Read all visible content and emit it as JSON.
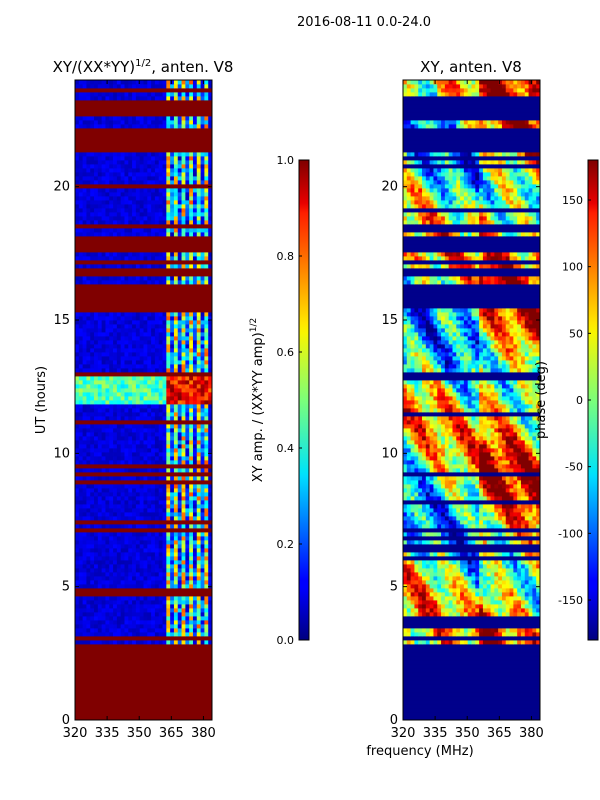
{
  "figure": {
    "suptitle": "2016-08-11 0.0-24.0",
    "shared_xlabel": "frequency (MHz)"
  },
  "chart_data": [
    {
      "type": "heatmap",
      "title": "XY/(XX*YY)",
      "title_superscript": "1/2",
      "title_suffix": ", anten. V8",
      "xlabel": "",
      "ylabel": "UT (hours)",
      "xlim": [
        320,
        384
      ],
      "ylim": [
        0,
        24
      ],
      "xticks": [
        "320",
        "335",
        "350",
        "365",
        "380"
      ],
      "yticks": [
        "0",
        "5",
        "10",
        "15",
        "20"
      ],
      "colorbar": {
        "label": "XY amp. / (XX*YY amp)",
        "label_superscript": "1/2",
        "range": [
          0.0,
          1.0
        ],
        "ticks": [
          "0.0",
          "0.2",
          "0.4",
          "0.6",
          "0.8",
          "1.0"
        ],
        "colormap": "jet"
      },
      "masked_value_color": "#800000",
      "masked_time_ranges": [
        [
          0.0,
          2.8
        ],
        [
          15.4,
          16.3
        ],
        [
          16.6,
          16.9
        ],
        [
          17.6,
          18.2
        ],
        [
          21.3,
          22.2
        ],
        [
          22.6,
          23.3
        ]
      ],
      "hot_frequency_band": [
        362,
        382
      ],
      "high_coherence_time_range": [
        11.9,
        13.0
      ]
    },
    {
      "type": "heatmap",
      "title": "XY, anten. V8",
      "xlabel": "frequency (MHz)",
      "ylabel": "",
      "xlim": [
        320,
        384
      ],
      "ylim": [
        0,
        24
      ],
      "xticks": [
        "320",
        "335",
        "350",
        "365",
        "380"
      ],
      "yticks": [
        "0",
        "5",
        "10",
        "15",
        "20"
      ],
      "colorbar": {
        "label": "phase (deg)",
        "range": [
          -180,
          180
        ],
        "ticks": [
          "-150",
          "-100",
          "-50",
          "0",
          "50",
          "100",
          "150"
        ],
        "colormap": "jet"
      },
      "masked_value_color": "#00008b",
      "masked_time_ranges": [
        [
          0.0,
          2.8
        ],
        [
          15.4,
          16.3
        ],
        [
          16.6,
          16.9
        ],
        [
          17.6,
          18.2
        ],
        [
          21.3,
          22.2
        ],
        [
          22.6,
          23.3
        ]
      ]
    }
  ]
}
